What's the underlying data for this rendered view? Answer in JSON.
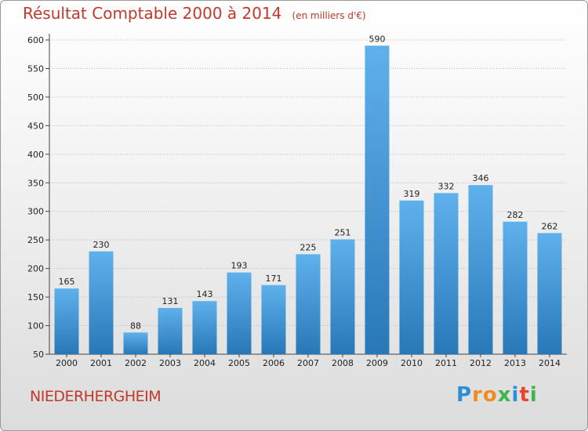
{
  "title": "Résultat Comptable 2000 à 2014",
  "unit": "(en milliers d'€)",
  "commune": "NIEDERHERGHEIM",
  "logo": {
    "letters": [
      "P",
      "r",
      "o",
      "x",
      "i",
      "t",
      "i"
    ],
    "colors": [
      "#2c8fd6",
      "#f28c1e",
      "#f28c1e",
      "#3cb54a",
      "#2c8fd6",
      "#e8452c",
      "#3cb54a"
    ]
  },
  "colors": {
    "bar_light": "#5fb1ec",
    "bar_dark": "#2878b8",
    "title": "#c0392b",
    "grid": "#b8b8b8"
  },
  "chart_data": {
    "type": "bar",
    "categories": [
      "2000",
      "2001",
      "2002",
      "2003",
      "2004",
      "2005",
      "2006",
      "2007",
      "2008",
      "2009",
      "2010",
      "2011",
      "2012",
      "2013",
      "2014"
    ],
    "values": [
      165,
      230,
      88,
      131,
      143,
      193,
      171,
      225,
      251,
      590,
      319,
      332,
      346,
      282,
      262
    ],
    "title": "Résultat Comptable 2000 à 2014",
    "xlabel": "",
    "ylabel": "",
    "ylim": [
      50,
      600
    ],
    "yticks": [
      50,
      100,
      150,
      200,
      250,
      300,
      350,
      400,
      450,
      500,
      550,
      600
    ],
    "grid": true
  }
}
